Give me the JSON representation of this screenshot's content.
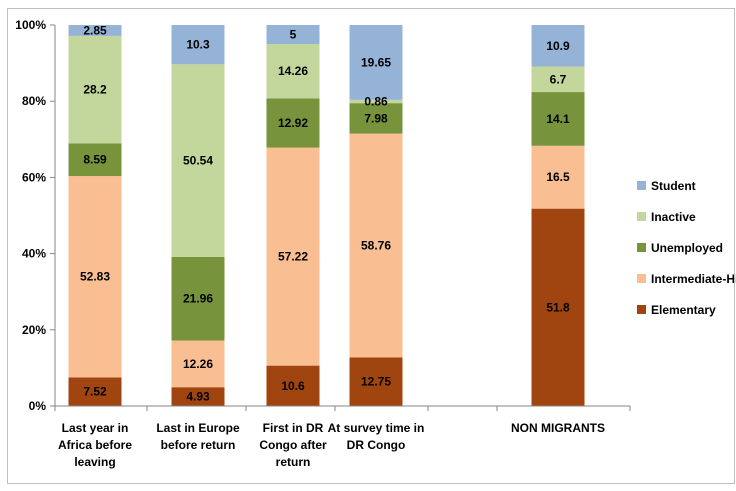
{
  "chart_data": {
    "type": "bar",
    "stacked": true,
    "title": "",
    "xlabel": "",
    "ylabel": "",
    "ylim": [
      0,
      100
    ],
    "yticks": [
      "0%",
      "20%",
      "40%",
      "60%",
      "80%",
      "100%"
    ],
    "grid": false,
    "legend_position": "right",
    "categories": [
      [
        "Last year in",
        "Africa before",
        "leaving"
      ],
      [
        "Last in Europe",
        "before return"
      ],
      [
        "First in DR",
        "Congo after",
        "return"
      ],
      [
        "At survey time in",
        "DR Congo"
      ],
      [
        "NON MIGRANTS"
      ]
    ],
    "series": [
      {
        "name": "Elementary",
        "color": "#a0450f",
        "values": [
          7.52,
          4.93,
          10.6,
          12.75,
          51.8
        ]
      },
      {
        "name": "Intermediate-High",
        "color": "#f9bf93",
        "values": [
          52.83,
          12.26,
          57.22,
          58.76,
          16.5
        ]
      },
      {
        "name": "Unemployed",
        "color": "#77933c",
        "values": [
          8.59,
          21.96,
          12.92,
          7.98,
          14.1
        ]
      },
      {
        "name": "Inactive",
        "color": "#c3d69b",
        "values": [
          28.2,
          50.54,
          14.26,
          0.86,
          6.7
        ]
      },
      {
        "name": "Student",
        "color": "#95b3d7",
        "values": [
          2.85,
          10.3,
          5,
          19.65,
          10.9
        ]
      }
    ],
    "legend_order": [
      "Student",
      "Inactive",
      "Unemployed",
      "Intermediate-High",
      "Elementary"
    ]
  }
}
